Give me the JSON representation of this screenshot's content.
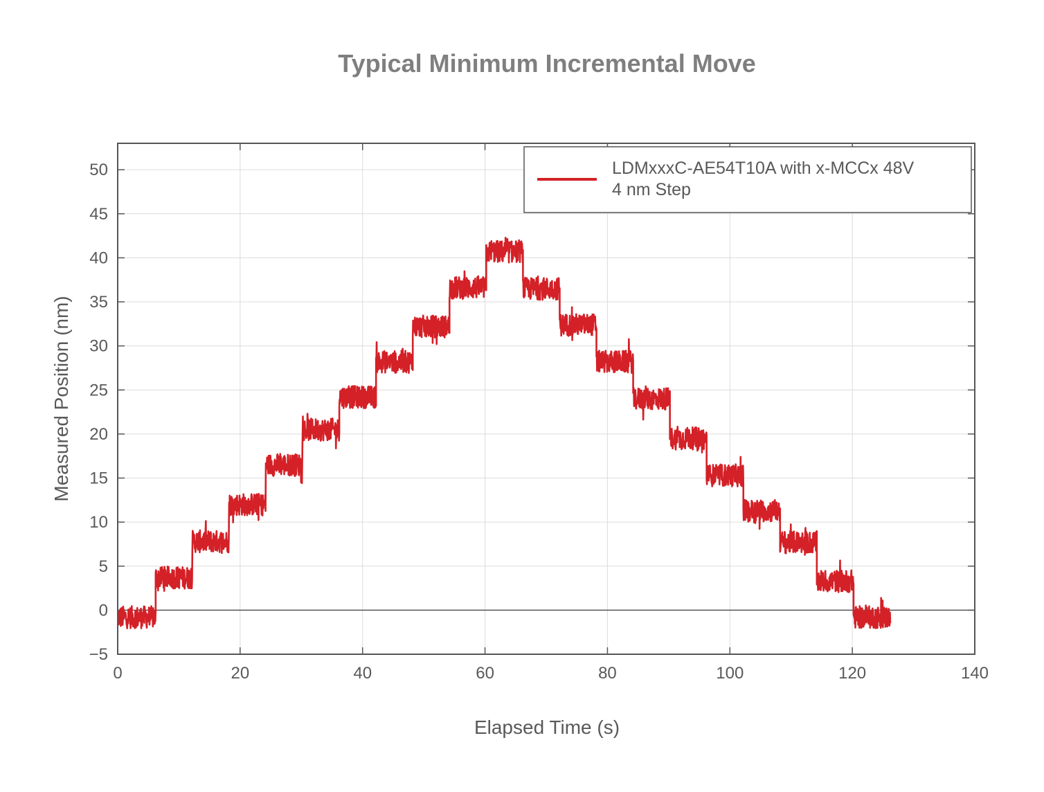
{
  "chart_data": {
    "type": "line",
    "title": "Typical Minimum Incremental Move",
    "xlabel": "Elapsed Time (s)",
    "ylabel": "Measured Position (nm)",
    "xlim": [
      0,
      140
    ],
    "ylim": [
      -5,
      53
    ],
    "xticks": [
      0,
      20,
      40,
      60,
      80,
      100,
      120,
      140
    ],
    "yticks": [
      -5,
      0,
      5,
      10,
      15,
      20,
      25,
      30,
      35,
      40,
      45,
      50
    ],
    "xtick_labels": [
      "0",
      "20",
      "40",
      "60",
      "80",
      "100",
      "120",
      "140"
    ],
    "ytick_labels": [
      "−5",
      "0",
      "5",
      "10",
      "15",
      "20",
      "25",
      "30",
      "35",
      "40",
      "45",
      "50"
    ],
    "grid": true,
    "legend_position": "top-right",
    "series": [
      {
        "name": "LDMxxxC-AE54T10A with x-MCCx 48V",
        "subtitle": "4 nm Step",
        "color": "#d42027",
        "noise_band_nm": 3,
        "levels": [
          {
            "t_start": 0,
            "t_end": 6.2,
            "nm": -0.8
          },
          {
            "t_start": 6.2,
            "t_end": 12.2,
            "nm": 3.7
          },
          {
            "t_start": 12.2,
            "t_end": 18.2,
            "nm": 7.8
          },
          {
            "t_start": 18.2,
            "t_end": 24.2,
            "nm": 12.0
          },
          {
            "t_start": 24.2,
            "t_end": 30.2,
            "nm": 16.5
          },
          {
            "t_start": 30.2,
            "t_end": 36.2,
            "nm": 20.5
          },
          {
            "t_start": 36.2,
            "t_end": 42.2,
            "nm": 24.2
          },
          {
            "t_start": 42.2,
            "t_end": 48.2,
            "nm": 28.2
          },
          {
            "t_start": 48.2,
            "t_end": 54.2,
            "nm": 32.2
          },
          {
            "t_start": 54.2,
            "t_end": 60.2,
            "nm": 36.6
          },
          {
            "t_start": 60.2,
            "t_end": 66.2,
            "nm": 40.7
          },
          {
            "t_start": 66.2,
            "t_end": 72.2,
            "nm": 36.5
          },
          {
            "t_start": 72.2,
            "t_end": 78.2,
            "nm": 32.4
          },
          {
            "t_start": 78.2,
            "t_end": 84.2,
            "nm": 28.2
          },
          {
            "t_start": 84.2,
            "t_end": 90.2,
            "nm": 24.0
          },
          {
            "t_start": 90.2,
            "t_end": 96.2,
            "nm": 19.5
          },
          {
            "t_start": 96.2,
            "t_end": 102.2,
            "nm": 15.3
          },
          {
            "t_start": 102.2,
            "t_end": 108.2,
            "nm": 11.3
          },
          {
            "t_start": 108.2,
            "t_end": 114.2,
            "nm": 7.7
          },
          {
            "t_start": 114.2,
            "t_end": 120.2,
            "nm": 3.3
          },
          {
            "t_start": 120.2,
            "t_end": 126.2,
            "nm": -0.8
          }
        ]
      }
    ]
  }
}
